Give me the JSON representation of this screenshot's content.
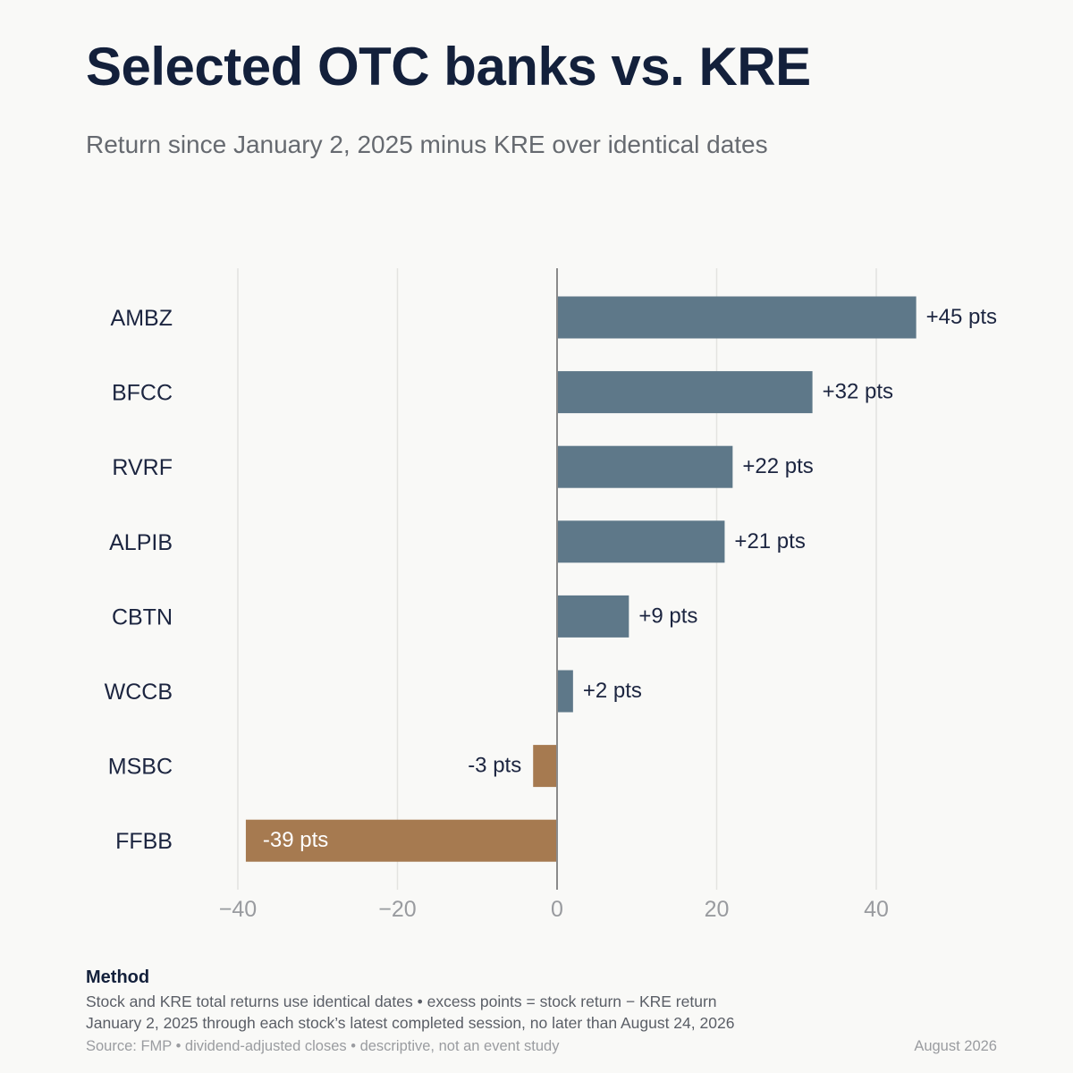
{
  "title": "Selected OTC banks vs. KRE",
  "subtitle": "Return since January 2, 2025 minus KRE over identical dates",
  "chart_data": {
    "type": "bar",
    "orientation": "horizontal",
    "categories": [
      "AMBZ",
      "BFCC",
      "RVRF",
      "ALPIB",
      "CBTN",
      "WCCB",
      "MSBC",
      "FFBB"
    ],
    "values": [
      45,
      32,
      22,
      21,
      9,
      2,
      -3,
      -39
    ],
    "data_labels": [
      "+45 pts",
      "+32 pts",
      "+22 pts",
      "+21 pts",
      "+9 pts",
      "+2 pts",
      "-3 pts",
      "-39 pts"
    ],
    "xlim": [
      -40,
      55
    ],
    "xticks": [
      -40,
      -20,
      0,
      20,
      40
    ],
    "xtick_labels": [
      "−40",
      "−20",
      "0",
      "20",
      "40"
    ],
    "grid": true,
    "colors": {
      "positive": "#5e7889",
      "negative": "#a67a50",
      "grid": "#e3e3e0",
      "zero_line": "#8a8a8a"
    }
  },
  "method": {
    "heading": "Method",
    "line1": "Stock and KRE total returns use identical dates • excess points = stock return − KRE return",
    "line2": "January 2, 2025 through each stock’s latest completed session, no later than August 24, 2026"
  },
  "source": "Source: FMP • dividend-adjusted closes • descriptive, not an event study",
  "date": "August 2026"
}
